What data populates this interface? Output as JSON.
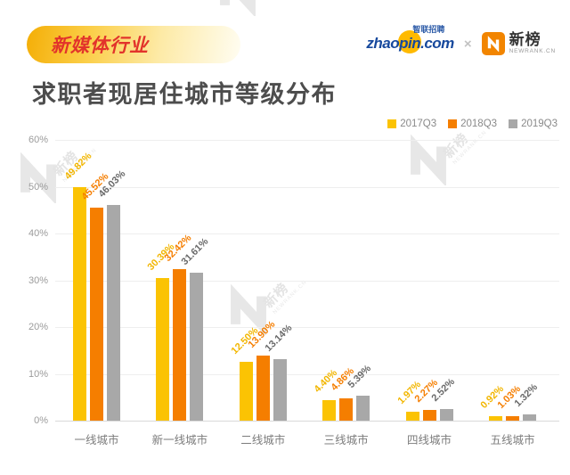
{
  "header": {
    "badge_label": "新媒体行业",
    "title": "求职者现居住城市等级分布",
    "brand": {
      "zhaopin_wordmark": "zhaopin.com",
      "zhaopin_cn": "智联招聘",
      "separator": "×",
      "newrank_name": "新榜",
      "newrank_sub": "NEWRANK.CN"
    }
  },
  "watermark": {
    "name": "新榜",
    "sub": "NEWRANK.CN"
  },
  "chart_data": {
    "type": "bar",
    "title": "求职者现居住城市等级分布",
    "categories": [
      "一线城市",
      "新一线城市",
      "二线城市",
      "三线城市",
      "四线城市",
      "五线城市"
    ],
    "series": [
      {
        "name": "2017Q3",
        "color": "#fbc303",
        "label_color": "#f2b600",
        "values": [
          49.82,
          30.39,
          12.5,
          4.4,
          1.97,
          0.92
        ],
        "labels": [
          "49.82%",
          "30.39%",
          "12.50%",
          "4.40%",
          "1.97%",
          "0.92%"
        ]
      },
      {
        "name": "2018Q3",
        "color": "#f57e00",
        "label_color": "#f57e00",
        "values": [
          45.52,
          32.42,
          13.9,
          4.86,
          2.27,
          1.03
        ],
        "labels": [
          "45.52%",
          "32.42%",
          "13.90%",
          "4.86%",
          "2.27%",
          "1.03%"
        ]
      },
      {
        "name": "2019Q3",
        "color": "#a8a8a8",
        "label_color": "#696969",
        "values": [
          46.03,
          31.61,
          13.14,
          5.39,
          2.52,
          1.32
        ],
        "labels": [
          "46.03%",
          "31.61%",
          "13.14%",
          "5.39%",
          "2.52%",
          "1.32%"
        ]
      }
    ],
    "ylim": [
      0,
      60
    ],
    "y_ticks": [
      "60%",
      "50%",
      "40%",
      "30%",
      "20%",
      "10%",
      "0%"
    ],
    "grid": true,
    "legend_position": "top-right",
    "data_labels_rotation": -45
  }
}
